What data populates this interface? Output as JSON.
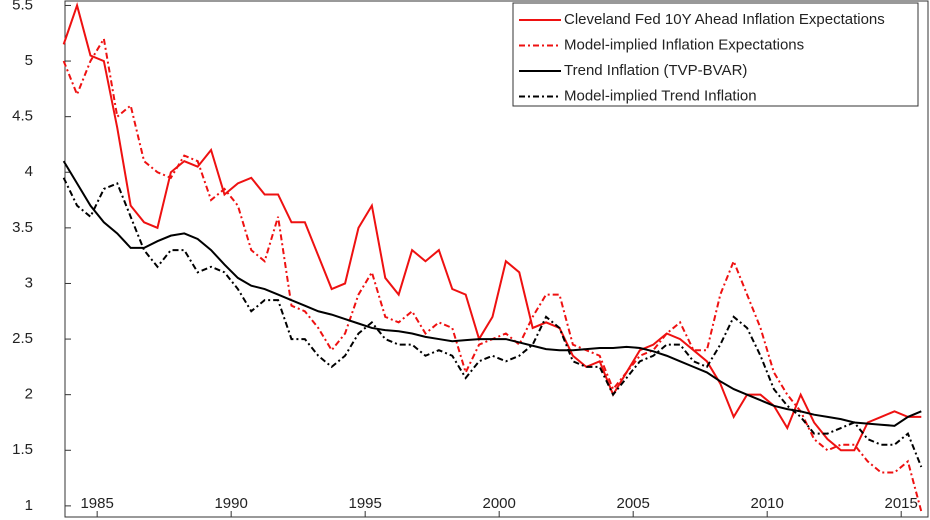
{
  "chart_data": {
    "type": "line",
    "x": [
      1983.75,
      1984.25,
      1984.75,
      1985.25,
      1985.75,
      1986.25,
      1986.75,
      1987.25,
      1987.75,
      1988.25,
      1988.75,
      1989.25,
      1989.75,
      1990.25,
      1990.75,
      1991.25,
      1991.75,
      1992.25,
      1992.75,
      1993.25,
      1993.75,
      1994.25,
      1994.75,
      1995.25,
      1995.75,
      1996.25,
      1996.75,
      1997.25,
      1997.75,
      1998.25,
      1998.75,
      1999.25,
      1999.75,
      2000.25,
      2000.75,
      2001.25,
      2001.75,
      2002.25,
      2002.75,
      2003.25,
      2003.75,
      2004.25,
      2004.75,
      2005.25,
      2005.75,
      2006.25,
      2006.75,
      2007.25,
      2007.75,
      2008.25,
      2008.75,
      2009.25,
      2009.75,
      2010.25,
      2010.75,
      2011.25,
      2011.75,
      2012.25,
      2012.75,
      2013.25,
      2013.75,
      2014.25,
      2014.75,
      2015.25,
      2015.75
    ],
    "series": [
      {
        "name": "Cleveland Fed 10Y Ahead Inflation Expectations",
        "color": "#ee1111",
        "dash": "solid",
        "values": [
          5.15,
          5.5,
          5.05,
          5.0,
          4.4,
          3.7,
          3.55,
          3.5,
          4.0,
          4.1,
          4.05,
          4.2,
          3.8,
          3.9,
          3.95,
          3.8,
          3.8,
          3.55,
          3.55,
          3.25,
          2.95,
          3.0,
          3.5,
          3.7,
          3.05,
          2.9,
          3.3,
          3.2,
          3.3,
          2.95,
          2.9,
          2.5,
          2.7,
          3.2,
          3.1,
          2.6,
          2.65,
          2.6,
          2.35,
          2.25,
          2.3,
          2.0,
          2.2,
          2.4,
          2.45,
          2.55,
          2.5,
          2.4,
          2.3,
          2.1,
          1.8,
          2.0,
          2.0,
          1.9,
          1.7,
          2.0,
          1.75,
          1.6,
          1.5,
          1.5,
          1.75,
          1.8,
          1.85,
          1.8,
          1.8
        ]
      },
      {
        "name": "Model-implied Inflation Expectations",
        "color": "#ee1111",
        "dash": "dashdot",
        "values": [
          5.0,
          4.7,
          5.0,
          5.2,
          4.5,
          4.6,
          4.1,
          4.0,
          3.95,
          4.15,
          4.1,
          3.75,
          3.85,
          3.7,
          3.3,
          3.2,
          3.6,
          2.8,
          2.75,
          2.6,
          2.4,
          2.55,
          2.9,
          3.1,
          2.7,
          2.65,
          2.75,
          2.55,
          2.65,
          2.6,
          2.2,
          2.45,
          2.5,
          2.55,
          2.45,
          2.7,
          2.9,
          2.9,
          2.45,
          2.4,
          2.35,
          2.05,
          2.2,
          2.35,
          2.4,
          2.55,
          2.65,
          2.4,
          2.4,
          2.9,
          3.2,
          2.9,
          2.6,
          2.2,
          2.0,
          1.85,
          1.6,
          1.5,
          1.55,
          1.55,
          1.4,
          1.3,
          1.3,
          1.4,
          0.95
        ]
      },
      {
        "name": "Trend Inflation (TVP-BVAR)",
        "color": "#000000",
        "dash": "solid",
        "values": [
          4.1,
          3.9,
          3.7,
          3.55,
          3.45,
          3.32,
          3.32,
          3.38,
          3.43,
          3.45,
          3.4,
          3.3,
          3.17,
          3.05,
          2.98,
          2.95,
          2.9,
          2.85,
          2.8,
          2.75,
          2.72,
          2.68,
          2.64,
          2.6,
          2.58,
          2.57,
          2.55,
          2.52,
          2.5,
          2.48,
          2.49,
          2.5,
          2.5,
          2.5,
          2.47,
          2.44,
          2.41,
          2.4,
          2.4,
          2.41,
          2.42,
          2.42,
          2.43,
          2.42,
          2.39,
          2.35,
          2.3,
          2.25,
          2.2,
          2.12,
          2.05,
          2.0,
          1.95,
          1.9,
          1.87,
          1.85,
          1.82,
          1.8,
          1.78,
          1.75,
          1.74,
          1.73,
          1.72,
          1.8,
          1.85
        ]
      },
      {
        "name": "Model-implied Trend Inflation",
        "color": "#000000",
        "dash": "dashdot",
        "values": [
          3.95,
          3.7,
          3.6,
          3.85,
          3.9,
          3.6,
          3.3,
          3.15,
          3.3,
          3.3,
          3.1,
          3.15,
          3.1,
          2.95,
          2.75,
          2.85,
          2.85,
          2.5,
          2.5,
          2.35,
          2.25,
          2.35,
          2.55,
          2.65,
          2.5,
          2.45,
          2.45,
          2.35,
          2.4,
          2.35,
          2.15,
          2.3,
          2.35,
          2.3,
          2.35,
          2.45,
          2.7,
          2.6,
          2.3,
          2.25,
          2.25,
          2.0,
          2.15,
          2.3,
          2.35,
          2.45,
          2.45,
          2.3,
          2.25,
          2.45,
          2.7,
          2.6,
          2.35,
          2.05,
          1.9,
          1.8,
          1.65,
          1.65,
          1.7,
          1.75,
          1.6,
          1.55,
          1.55,
          1.65,
          1.35
        ]
      }
    ],
    "xlim": [
      1983.8,
      2016.0
    ],
    "xticks": [
      1985,
      1990,
      1995,
      2000,
      2005,
      2010,
      2015
    ],
    "ylim": [
      0.9,
      5.54
    ],
    "yticks": [
      1,
      1.5,
      2,
      2.5,
      3,
      3.5,
      4,
      4.5,
      5,
      5.5
    ],
    "legend": "top-right"
  }
}
